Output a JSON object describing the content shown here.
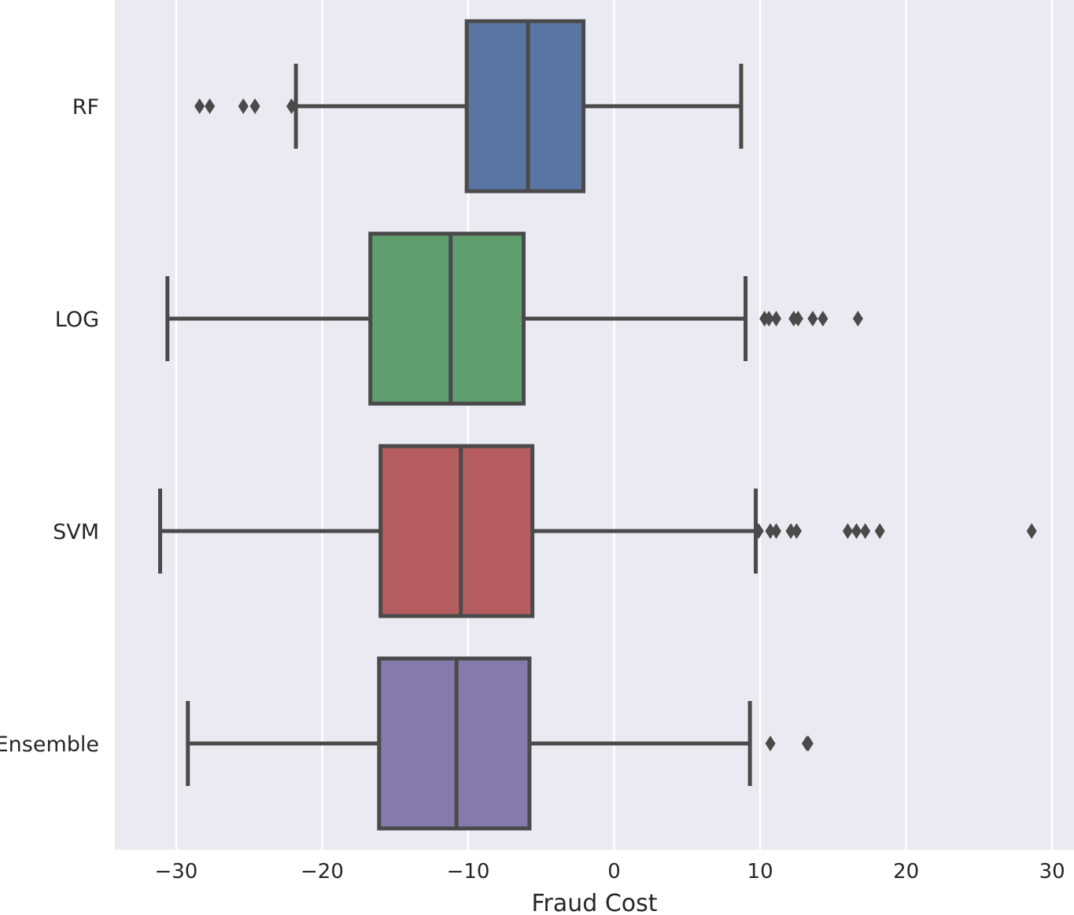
{
  "chart_data": {
    "type": "boxplot",
    "orientation": "horizontal",
    "xlabel": "Fraud Cost",
    "ylabel": "",
    "xlim": [
      -34.2,
      31.5
    ],
    "xticks": [
      -30,
      -20,
      -10,
      0,
      10,
      20,
      30
    ],
    "xtick_labels": [
      "−30",
      "−20",
      "−10",
      "0",
      "10",
      "20",
      "30"
    ],
    "grid": true,
    "background": "#eaeaf2",
    "line_color": "#4a4a4a",
    "categories": [
      "RF",
      "LOG",
      "SVM",
      "Ensemble"
    ],
    "series": [
      {
        "name": "RF",
        "color": "#5975a4",
        "whisker_low": -21.8,
        "q1": -10.1,
        "median": -5.9,
        "q3": -2.1,
        "whisker_high": 8.7,
        "outliers": [
          -28.4,
          -27.7,
          -25.4,
          -24.6,
          -22.1
        ]
      },
      {
        "name": "LOG",
        "color": "#5f9e6e",
        "whisker_low": -30.6,
        "q1": -16.7,
        "median": -11.2,
        "q3": -6.2,
        "whisker_high": 9.0,
        "outliers": [
          10.3,
          10.6,
          11.1,
          12.3,
          12.6,
          13.6,
          14.3,
          16.7
        ]
      },
      {
        "name": "SVM",
        "color": "#b55d60",
        "whisker_low": -31.1,
        "q1": -16.0,
        "median": -10.5,
        "q3": -5.6,
        "whisker_high": 9.7,
        "outliers": [
          9.9,
          10.7,
          11.1,
          12.1,
          12.5,
          16.0,
          16.6,
          17.2,
          18.2,
          28.6
        ]
      },
      {
        "name": "Ensemble",
        "color": "#857aab",
        "whisker_low": -29.2,
        "q1": -16.1,
        "median": -10.8,
        "q3": -5.8,
        "whisker_high": 9.3,
        "outliers": [
          10.7,
          13.2,
          13.3
        ]
      }
    ]
  }
}
